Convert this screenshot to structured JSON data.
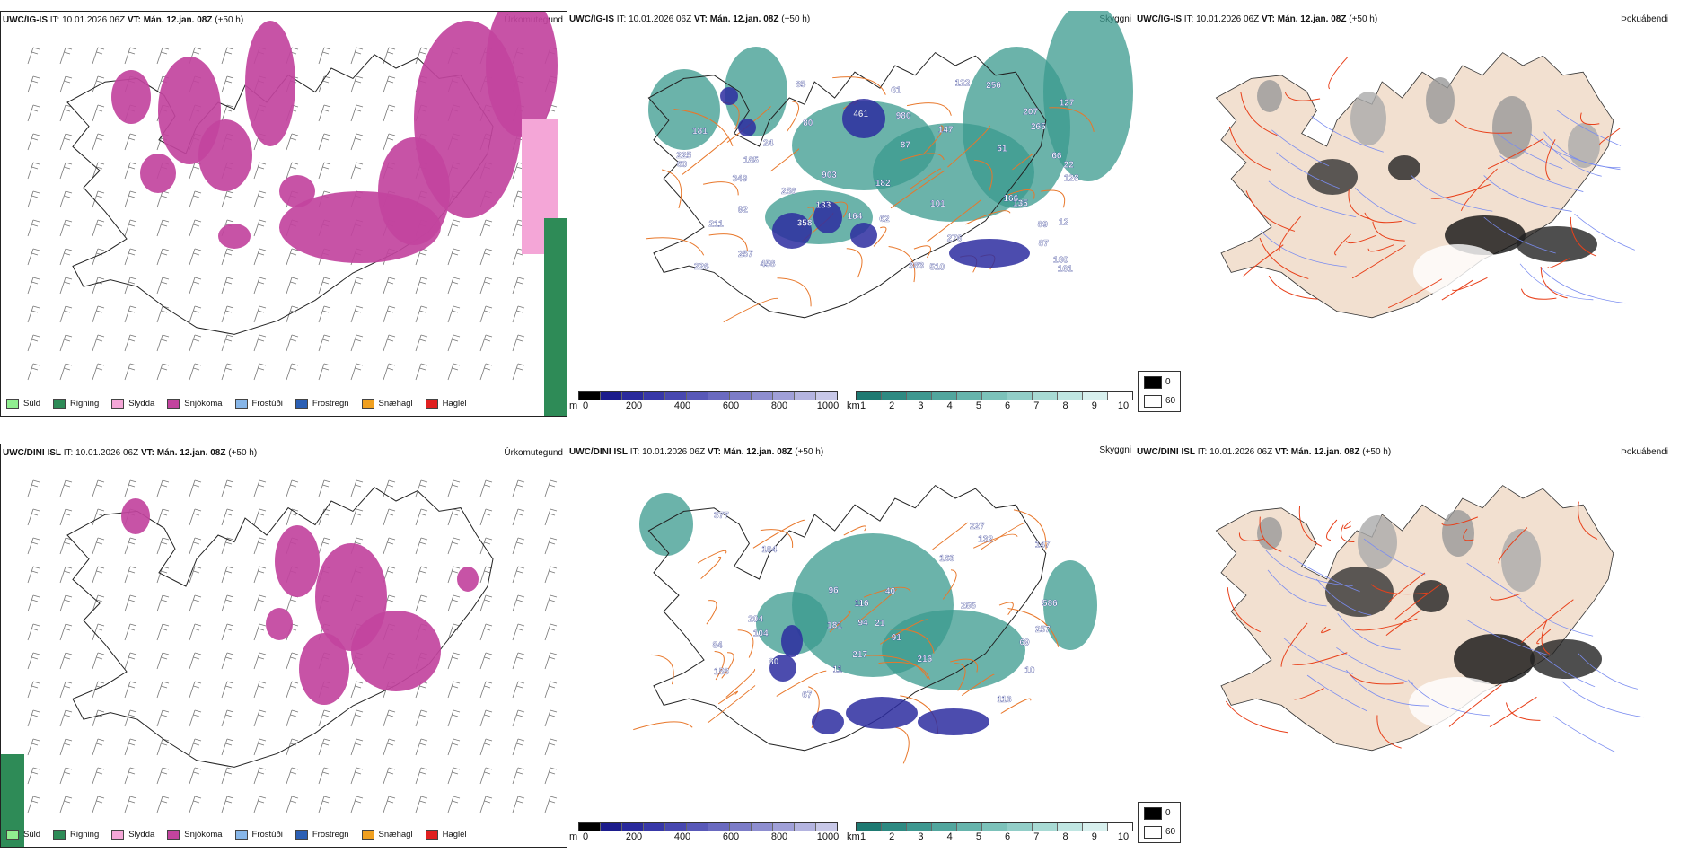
{
  "rows": [
    {
      "header": {
        "model": "UWC/IG-IS",
        "it_label": "IT:",
        "it_value": "10.01.2026 06Z",
        "vt_label": "VT:",
        "vt_value": "Mán. 12.jan. 08Z",
        "lead": "(+50 h)"
      },
      "panels": {
        "precip_title": "Úrkomutegund",
        "cloud_title": "Skyggni",
        "fog_title": "Þokuábendi"
      },
      "cloud_labels": [
        "80",
        "66",
        "147",
        "22",
        "903",
        "12",
        "133",
        "122",
        "89",
        "207",
        "24",
        "135",
        "61",
        "358",
        "211",
        "182",
        "258",
        "225",
        "85",
        "461",
        "160",
        "980",
        "257",
        "92",
        "87",
        "256",
        "226",
        "276",
        "383",
        "127",
        "458",
        "161",
        "349",
        "61",
        "185",
        "60",
        "128",
        "101",
        "265",
        "166",
        "510",
        "181",
        "164",
        "62",
        "87"
      ]
    },
    {
      "header": {
        "model": "UWC/DINI ISL",
        "it_label": "IT:",
        "it_value": "10.01.2026 06Z",
        "vt_label": "VT:",
        "vt_value": "Mán. 12.jan. 08Z",
        "lead": "(+50 h)"
      },
      "panels": {
        "precip_title": "Úrkomutegund",
        "cloud_title": "Skyggni",
        "fog_title": "Þokuábendi"
      },
      "cloud_labels": [
        "40",
        "586",
        "181",
        "216",
        "96",
        "10",
        "104",
        "204",
        "377",
        "227",
        "163",
        "94",
        "217",
        "158",
        "80",
        "255",
        "257",
        "113",
        "69",
        "67",
        "116",
        "104",
        "132",
        "91",
        "84",
        "21",
        "11",
        "147"
      ]
    }
  ],
  "precip_legend": [
    {
      "label": "Súld",
      "color": "#90ee90"
    },
    {
      "label": "Rigning",
      "color": "#2e8b57"
    },
    {
      "label": "Slydda",
      "color": "#f4a6d7"
    },
    {
      "label": "Snjókoma",
      "color": "#c2449e"
    },
    {
      "label": "Frostúði",
      "color": "#87b6e8"
    },
    {
      "label": "Frostregn",
      "color": "#2b5fb4"
    },
    {
      "label": "Snæhagl",
      "color": "#f0a020"
    },
    {
      "label": "Haglél",
      "color": "#e02020"
    }
  ],
  "cloudbase_bar": {
    "unit": "m",
    "ticks": [
      "0",
      "200",
      "400",
      "600",
      "800",
      "1000"
    ],
    "colors": [
      "#000000",
      "#1c1c8c",
      "#2a2a9c",
      "#3838a8",
      "#4848b0",
      "#5858b8",
      "#6a6ac0",
      "#7c7cc8",
      "#8e8ed0",
      "#a0a0d8",
      "#b4b4e0",
      "#c8c8e8"
    ]
  },
  "visibility_bar": {
    "unit": "km",
    "ticks": [
      "1",
      "2",
      "3",
      "4",
      "5",
      "6",
      "7",
      "8",
      "9",
      "10"
    ],
    "colors": [
      "#1e7a72",
      "#2e8a82",
      "#3e9890",
      "#52a69e",
      "#66b4ac",
      "#7cc2ba",
      "#92cec8",
      "#a8dad4",
      "#c0e6e2",
      "#d8f0ee",
      "#ffffff"
    ]
  },
  "fog_legend": {
    "max_label": "0",
    "min_label": "60"
  },
  "colors": {
    "snow": "#c2449e",
    "sleet": "#f4a6d7",
    "rain": "#2e8b57",
    "cloud_teal": "#3a9a8e",
    "cloud_blue": "#2d2da0",
    "roads": "#e8772a",
    "land": "#f2e0d0",
    "rivers": "#7a8cf0",
    "fog_roads": "#e8401a"
  }
}
